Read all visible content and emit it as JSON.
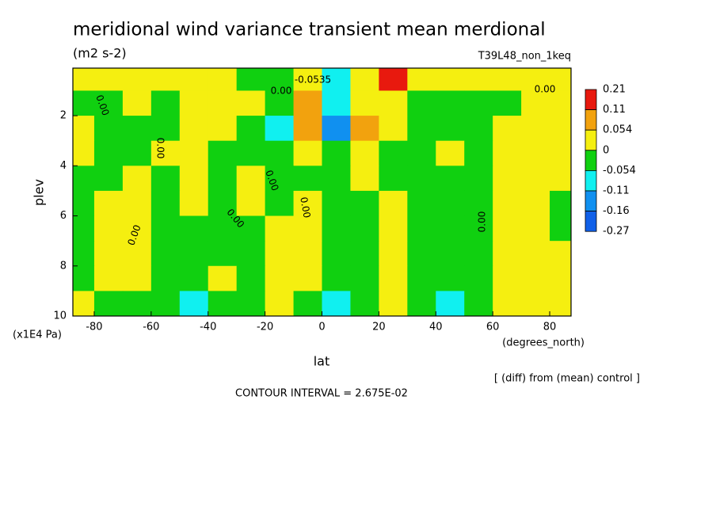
{
  "chart_data": {
    "type": "contour",
    "title": "meridional wind variance transient mean merdional",
    "subtitle": "(m2 s-2)",
    "dataset": "T39L48_non_1keq",
    "y_label": "plev",
    "y_units": "(x1E4 Pa)",
    "x_label": "lat",
    "x_units": "(degrees_north)",
    "note": "[ (diff) from (mean) control ]",
    "contour_interval": "CONTOUR INTERVAL = 2.675E-02",
    "xlim": [
      -87.5,
      87.5
    ],
    "ylim": [
      10,
      0.1
    ],
    "xticks": [
      -80,
      -60,
      -40,
      -20,
      0,
      20,
      40,
      60,
      80
    ],
    "yticks": [
      2,
      4,
      6,
      8,
      10
    ],
    "levels": [
      0.21,
      0.11,
      0.054,
      0,
      -0.054,
      -0.11,
      -0.16,
      -0.27
    ],
    "level_colors": [
      "#e8190e",
      "#f2a20e",
      "#f5ef10",
      "#10d010",
      "#10f0f0",
      "#1090f0",
      "#1060e8"
    ],
    "lat": [
      -85,
      -75,
      -65,
      -55,
      -45,
      -35,
      -25,
      -15,
      -5,
      5,
      15,
      25,
      35,
      45,
      55,
      65,
      75,
      85
    ],
    "plev": [
      0.5,
      1.5,
      2.5,
      3.5,
      4.5,
      5.5,
      6.5,
      7.5,
      8.5,
      9.5
    ],
    "z": [
      [
        0.02,
        0.02,
        0.02,
        0.02,
        0.02,
        0.02,
        -0.02,
        -0.02,
        0.02,
        -0.08,
        0.02,
        0.15,
        0.02,
        0.02,
        0.02,
        0.02,
        0.02,
        0.02
      ],
      [
        -0.02,
        -0.02,
        0.02,
        -0.02,
        0.02,
        0.02,
        0.02,
        -0.02,
        0.08,
        -0.08,
        0.02,
        0.02,
        -0.02,
        -0.02,
        -0.02,
        -0.02,
        0.02,
        0.02
      ],
      [
        0.02,
        -0.02,
        -0.02,
        -0.02,
        0.02,
        0.02,
        -0.02,
        -0.08,
        0.08,
        -0.13,
        0.08,
        0.02,
        -0.02,
        -0.02,
        -0.02,
        0.02,
        0.02,
        0.02
      ],
      [
        0.02,
        -0.02,
        -0.02,
        0.02,
        0.02,
        -0.02,
        -0.02,
        -0.02,
        0.02,
        -0.02,
        0.02,
        -0.02,
        -0.02,
        0.02,
        -0.02,
        0.02,
        0.02,
        0.02
      ],
      [
        -0.02,
        -0.02,
        0.02,
        -0.02,
        0.02,
        -0.02,
        0.02,
        -0.02,
        -0.02,
        -0.02,
        0.02,
        -0.02,
        -0.02,
        -0.02,
        -0.02,
        0.02,
        0.02,
        0.02
      ],
      [
        -0.02,
        0.02,
        0.02,
        -0.02,
        0.02,
        -0.02,
        0.02,
        -0.02,
        0.02,
        -0.02,
        -0.02,
        0.02,
        -0.02,
        -0.02,
        -0.02,
        0.02,
        0.02,
        -0.02
      ],
      [
        -0.02,
        0.02,
        0.02,
        -0.02,
        -0.02,
        -0.02,
        -0.02,
        0.02,
        0.02,
        -0.02,
        -0.02,
        0.02,
        -0.02,
        -0.02,
        -0.02,
        0.02,
        0.02,
        -0.02
      ],
      [
        -0.02,
        0.02,
        0.02,
        -0.02,
        -0.02,
        -0.02,
        -0.02,
        0.02,
        0.02,
        -0.02,
        -0.02,
        0.02,
        -0.02,
        -0.02,
        -0.02,
        0.02,
        0.02,
        0.02
      ],
      [
        -0.02,
        0.02,
        0.02,
        -0.02,
        -0.02,
        0.02,
        -0.02,
        0.02,
        0.02,
        -0.02,
        -0.02,
        0.02,
        -0.02,
        -0.02,
        -0.02,
        0.02,
        0.02,
        0.02
      ],
      [
        0.02,
        -0.02,
        -0.02,
        -0.02,
        -0.06,
        -0.02,
        -0.02,
        0.02,
        -0.02,
        -0.06,
        -0.02,
        0.02,
        -0.02,
        -0.06,
        -0.02,
        0.02,
        0.02,
        0.02
      ]
    ],
    "annotations": [
      "-0.0535",
      "0.00",
      "0.00",
      "0.00",
      "0.00",
      "0.00",
      "0.00",
      "0.00",
      "0.00",
      "0.00"
    ]
  }
}
